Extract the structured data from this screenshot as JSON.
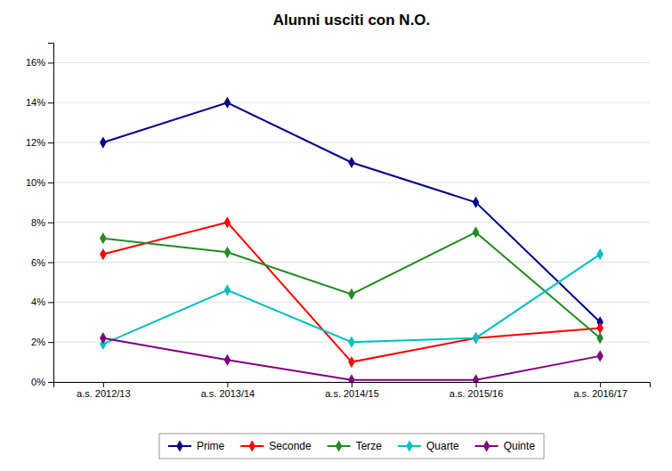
{
  "chart_data": {
    "type": "line",
    "title": "Alunni usciti con N.O.",
    "categories": [
      "a.s. 2012/13",
      "a.s. 2013/14",
      "a.s. 2014/15",
      "a.s. 2015/16",
      "a.s. 2016/17"
    ],
    "series": [
      {
        "name": "Prime",
        "color": "#00008B",
        "marker": "diamond",
        "values": [
          0.12,
          0.14,
          0.11,
          0.09,
          0.03
        ]
      },
      {
        "name": "Seconde",
        "color": "#FF0000",
        "marker": "diamond",
        "values": [
          0.064,
          0.08,
          0.01,
          0.022,
          0.027
        ]
      },
      {
        "name": "Terze",
        "color": "#228B22",
        "marker": "diamond",
        "values": [
          0.072,
          0.065,
          0.044,
          0.075,
          0.022
        ]
      },
      {
        "name": "Quarte",
        "color": "#00BFBF",
        "marker": "diamond",
        "values": [
          0.019,
          0.046,
          0.02,
          0.022,
          0.064
        ]
      },
      {
        "name": "Quinte",
        "color": "#800080",
        "marker": "diamond",
        "values": [
          0.022,
          0.011,
          0.001,
          0.001,
          0.013
        ]
      }
    ],
    "ylim": [
      0.0,
      0.17
    ],
    "yticks": [
      {
        "value": 0.0,
        "label": "0%"
      },
      {
        "value": 0.02,
        "label": "2%"
      },
      {
        "value": 0.04,
        "label": "4%"
      },
      {
        "value": 0.06,
        "label": "6%"
      },
      {
        "value": 0.08,
        "label": "8%"
      },
      {
        "value": 0.1,
        "label": "10%"
      },
      {
        "value": 0.12,
        "label": "12%"
      },
      {
        "value": 0.14,
        "label": "14%"
      },
      {
        "value": 0.16,
        "label": "16%"
      }
    ],
    "grid": true,
    "legend": "bottom"
  }
}
